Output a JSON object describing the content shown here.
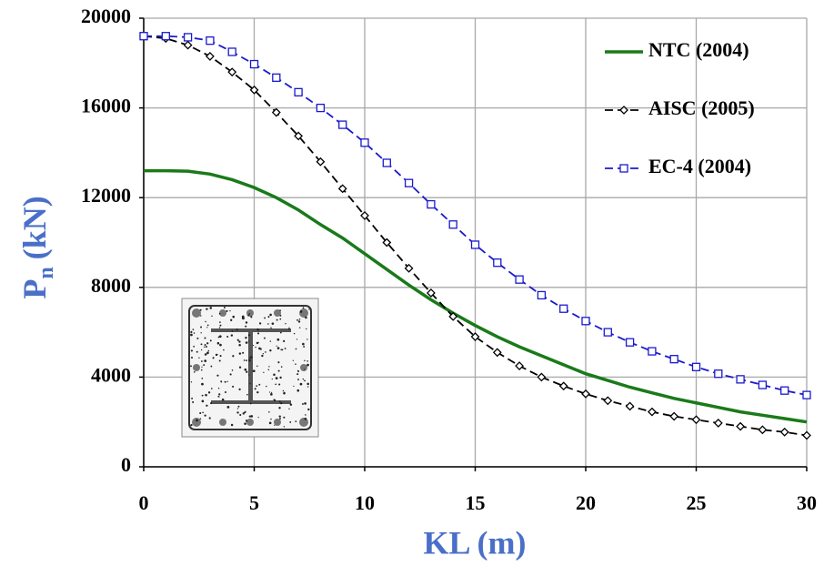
{
  "chart_data": {
    "type": "line",
    "x_label": "KL (m)",
    "y_label": [
      "P",
      "n",
      "(kN)"
    ],
    "x": [
      0,
      1,
      2,
      3,
      4,
      5,
      6,
      7,
      8,
      9,
      10,
      11,
      12,
      13,
      14,
      15,
      16,
      17,
      18,
      19,
      20,
      21,
      22,
      23,
      24,
      25,
      26,
      27,
      28,
      29,
      30
    ],
    "series": [
      {
        "name": "NTC (2004)",
        "color": "#1a7a1a",
        "dash": false,
        "marker": "none",
        "values": [
          13200,
          13200,
          13180,
          13050,
          12800,
          12450,
          12000,
          11450,
          10800,
          10200,
          9500,
          8800,
          8100,
          7450,
          6850,
          6300,
          5800,
          5350,
          4950,
          4550,
          4150,
          3850,
          3550,
          3300,
          3050,
          2850,
          2650,
          2450,
          2300,
          2150,
          2000
        ]
      },
      {
        "name": "AISC (2005)",
        "color": "#000000",
        "dash": true,
        "marker": "diamond",
        "values": [
          19200,
          19100,
          18800,
          18300,
          17600,
          16800,
          15800,
          14750,
          13600,
          12400,
          11200,
          10000,
          8850,
          7750,
          6700,
          5800,
          5100,
          4500,
          4000,
          3600,
          3250,
          2950,
          2700,
          2450,
          2250,
          2100,
          1950,
          1800,
          1650,
          1550,
          1400
        ]
      },
      {
        "name": "EC-4 (2004)",
        "color": "#1a1acc",
        "dash": true,
        "marker": "square",
        "values": [
          19200,
          19200,
          19150,
          19000,
          18500,
          17950,
          17350,
          16700,
          16000,
          15250,
          14450,
          13550,
          12650,
          11700,
          10800,
          9900,
          9100,
          8350,
          7650,
          7050,
          6500,
          6000,
          5550,
          5150,
          4800,
          4450,
          4150,
          3900,
          3650,
          3400,
          3200
        ]
      }
    ],
    "xlim": [
      0,
      30
    ],
    "xticks": [
      0,
      5,
      10,
      15,
      20,
      25,
      30
    ],
    "ylim": [
      0,
      20000
    ],
    "yticks": [
      0,
      4000,
      8000,
      12000,
      16000,
      20000
    ],
    "grid": true,
    "legend": "top-right"
  }
}
